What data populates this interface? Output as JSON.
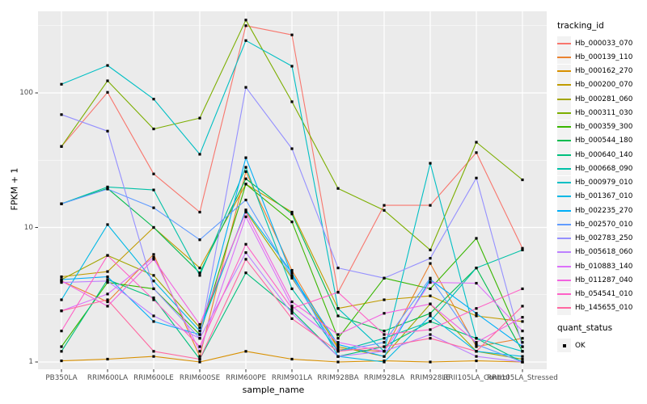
{
  "figure": {
    "background": "#FFFFFF",
    "panel_background": "#EBEBEB",
    "grid_color": "#FFFFFF",
    "tick_color": "#333333",
    "tick_label_color": "#4D4D4D",
    "point_color": "#000000"
  },
  "legend": {
    "tracking_title": "tracking_id",
    "quant_title": "quant_status",
    "quant_ok_label": "OK"
  },
  "chart_data": {
    "type": "line",
    "title": "",
    "xlabel": "sample_name",
    "ylabel": "FPKM + 1",
    "y_scale": "log10",
    "y_ticks": [
      1,
      10,
      100
    ],
    "y_minor_ticks": [
      3.162,
      31.62,
      316.2
    ],
    "ylim": [
      0.88,
      404
    ],
    "grid": true,
    "legend_position": "right",
    "point_shape": "filled-square",
    "quant_status": "OK",
    "categories": [
      "PB350LA",
      "RRIM600LA",
      "RRIM600LE",
      "RRIM600SE",
      "RRIM600PE",
      "RRIM901LA",
      "RRIM928BA",
      "RRIM928LA",
      "RRIM928LE",
      "RRII105LA_Control",
      "RRII105LA_Stressed"
    ],
    "series": [
      {
        "name": "Hb_000033_070",
        "color": "#F8766D",
        "values": [
          40,
          101,
          25,
          13,
          316,
          270,
          3.3,
          14.6,
          14.6,
          36,
          7
        ]
      },
      {
        "name": "Hb_000139_110",
        "color": "#EA8331",
        "values": [
          4.0,
          2.8,
          6.3,
          1.1,
          26,
          4.8,
          1.25,
          1.2,
          5.4,
          1.3,
          1.5
        ]
      },
      {
        "name": "Hb_000162_270",
        "color": "#D89000",
        "values": [
          1.02,
          1.05,
          1.1,
          1.0,
          1.2,
          1.05,
          1.0,
          1.02,
          1.0,
          1.02,
          1.0
        ]
      },
      {
        "name": "Hb_000200_070",
        "color": "#C09B00",
        "values": [
          4.3,
          4.7,
          10,
          5,
          21,
          13,
          2.5,
          2.9,
          3.1,
          2.2,
          2.0
        ]
      },
      {
        "name": "Hb_000281_060",
        "color": "#A3A500",
        "values": [
          4.1,
          6.2,
          4.4,
          1.8,
          13.2,
          4.2,
          1.3,
          1.1,
          2.7,
          1.2,
          1.05
        ]
      },
      {
        "name": "Hb_000311_030",
        "color": "#7CAE00",
        "values": [
          40,
          123,
          54,
          65,
          348,
          86,
          19.5,
          13.4,
          6.8,
          43,
          22.6
        ]
      },
      {
        "name": "Hb_000359_300",
        "color": "#39B600",
        "values": [
          1.3,
          3.9,
          3.5,
          1.6,
          21,
          11,
          1.5,
          4.2,
          3.5,
          8.3,
          1.4
        ]
      },
      {
        "name": "Hb_000544_180",
        "color": "#00BB4E",
        "values": [
          15,
          19.5,
          10,
          4.6,
          23,
          12.6,
          2.2,
          1.7,
          2.3,
          5.0,
          1.2
        ]
      },
      {
        "name": "Hb_000640_140",
        "color": "#00C07D",
        "values": [
          1.2,
          4.1,
          3.0,
          1.05,
          4.6,
          2.4,
          1.1,
          1.3,
          2.0,
          1.5,
          1.0
        ]
      },
      {
        "name": "Hb_000668_090",
        "color": "#00C1A7",
        "values": [
          15,
          20,
          19,
          4.4,
          28,
          3.5,
          1.2,
          1.5,
          2.0,
          5.0,
          6.8
        ]
      },
      {
        "name": "Hb_000979_010",
        "color": "#00BFC4",
        "values": [
          116,
          160,
          90,
          35,
          245,
          158,
          2.5,
          1.2,
          30,
          1.5,
          1.2
        ]
      },
      {
        "name": "Hb_001367_010",
        "color": "#00B8E5",
        "values": [
          2.9,
          10.5,
          4.0,
          1.7,
          13.5,
          4.6,
          1.1,
          1.0,
          2.2,
          1.2,
          1.1
        ]
      },
      {
        "name": "Hb_002235_270",
        "color": "#00AEF8",
        "values": [
          4.1,
          4.3,
          2.0,
          1.6,
          33,
          4.4,
          1.35,
          1.1,
          4.1,
          2.3,
          1.3
        ]
      },
      {
        "name": "Hb_002570_010",
        "color": "#619CFF",
        "values": [
          15,
          19.3,
          14,
          8.1,
          16,
          4.3,
          1.2,
          1.4,
          4.2,
          1.35,
          1.0
        ]
      },
      {
        "name": "Hb_002783_250",
        "color": "#9590FF",
        "values": [
          69,
          52,
          3.5,
          1.5,
          110,
          38.5,
          5.0,
          4.2,
          5.9,
          23.3,
          1.3
        ]
      },
      {
        "name": "Hb_005618_060",
        "color": "#BC81FF",
        "values": [
          3.9,
          4.0,
          2.2,
          1.5,
          6.5,
          2.3,
          1.1,
          1.2,
          1.6,
          1.1,
          1.0
        ]
      },
      {
        "name": "Hb_010883_140",
        "color": "#DC71FA",
        "values": [
          2.4,
          3.2,
          6.0,
          1.2,
          12,
          2.6,
          1.4,
          1.2,
          3.9,
          3.85,
          1.7
        ]
      },
      {
        "name": "Hb_011287_040",
        "color": "#F263E0",
        "values": [
          4.0,
          2.6,
          5.8,
          1.9,
          13,
          2.8,
          1.6,
          2.3,
          2.7,
          1.4,
          2.15
        ]
      },
      {
        "name": "Hb_054541_010",
        "color": "#FF61C7",
        "values": [
          1.7,
          6.2,
          2.9,
          1.3,
          7.5,
          2.5,
          3.3,
          1.6,
          1.74,
          2.5,
          3.5
        ]
      },
      {
        "name": "Hb_145655_010",
        "color": "#FF68A1",
        "values": [
          2.4,
          2.9,
          1.2,
          1.05,
          5.8,
          2.1,
          1.2,
          1.3,
          1.5,
          1.2,
          2.6
        ]
      }
    ]
  }
}
